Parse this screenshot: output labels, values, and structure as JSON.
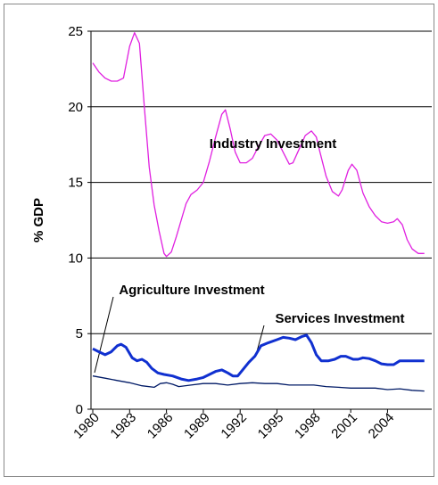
{
  "chart_data": {
    "type": "line",
    "ylabel": "% GDP",
    "xlim": [
      1980,
      2007.6
    ],
    "xticks": [
      1980,
      1983,
      1986,
      1989,
      1992,
      1995,
      1998,
      2001,
      2004
    ],
    "ylim": [
      0,
      25
    ],
    "yticks": [
      0,
      5,
      10,
      15,
      20,
      25
    ],
    "grid": true,
    "series": [
      {
        "name": "Industry Investment",
        "color": "#e020e0",
        "width": 1.3,
        "x": [
          1980,
          1980.5,
          1981,
          1981.5,
          1982,
          1982.5,
          1983,
          1983.4,
          1983.8,
          1984.2,
          1984.6,
          1985,
          1985.4,
          1985.8,
          1986,
          1986.4,
          1986.8,
          1987.2,
          1987.6,
          1988,
          1988.5,
          1989,
          1989.5,
          1990,
          1990.5,
          1990.8,
          1991.2,
          1991.6,
          1992,
          1992.5,
          1993,
          1993.5,
          1994,
          1994.5,
          1995,
          1995.5,
          1996,
          1996.3,
          1996.8,
          1997.3,
          1997.8,
          1998.2,
          1998.5,
          1999,
          1999.5,
          2000,
          2000.3,
          2000.8,
          2001.1,
          2001.5,
          2002,
          2002.5,
          2003,
          2003.5,
          2004,
          2004.5,
          2004.8,
          2005.2,
          2005.6,
          2006,
          2006.5,
          2007
        ],
        "values": [
          22.9,
          22.3,
          21.9,
          21.7,
          21.7,
          21.9,
          24.0,
          24.9,
          24.2,
          20,
          16,
          13.5,
          11.8,
          10.3,
          10.1,
          10.4,
          11.4,
          12.5,
          13.6,
          14.2,
          14.5,
          15,
          16.4,
          18,
          19.5,
          19.8,
          18.5,
          17,
          16.3,
          16.3,
          16.6,
          17.4,
          18.1,
          18.2,
          17.8,
          17,
          16.2,
          16.3,
          17.2,
          18.1,
          18.4,
          18,
          17,
          15.4,
          14.4,
          14.1,
          14.5,
          15.8,
          16.2,
          15.8,
          14.3,
          13.4,
          12.8,
          12.4,
          12.3,
          12.4,
          12.6,
          12.2,
          11.2,
          10.6,
          10.3,
          10.3
        ]
      },
      {
        "name": "Services Investment",
        "color": "#1030d0",
        "width": 3,
        "x": [
          1980,
          1980.5,
          1981,
          1981.5,
          1982,
          1982.3,
          1982.7,
          1983.2,
          1983.6,
          1984,
          1984.4,
          1984.8,
          1985.3,
          1985.8,
          1986.5,
          1987.2,
          1987.8,
          1988.5,
          1989,
          1989.5,
          1990,
          1990.5,
          1991,
          1991.4,
          1991.8,
          1992.2,
          1992.7,
          1993.2,
          1993.7,
          1994.3,
          1995,
          1995.5,
          1996,
          1996.5,
          1997,
          1997.4,
          1997.8,
          1998.2,
          1998.6,
          1999.2,
          1999.7,
          2000.2,
          2000.6,
          2001.2,
          2001.6,
          2002,
          2002.5,
          2003,
          2003.5,
          2004,
          2004.5,
          2005,
          2005.5,
          2006,
          2007
        ],
        "values": [
          4.0,
          3.8,
          3.6,
          3.8,
          4.2,
          4.3,
          4.1,
          3.4,
          3.2,
          3.3,
          3.1,
          2.7,
          2.4,
          2.3,
          2.2,
          2.0,
          1.9,
          2.0,
          2.1,
          2.3,
          2.5,
          2.6,
          2.4,
          2.2,
          2.2,
          2.6,
          3.1,
          3.5,
          4.2,
          4.4,
          4.6,
          4.75,
          4.7,
          4.6,
          4.8,
          4.9,
          4.4,
          3.6,
          3.2,
          3.2,
          3.3,
          3.5,
          3.5,
          3.3,
          3.3,
          3.4,
          3.35,
          3.2,
          3.0,
          2.95,
          2.95,
          3.2,
          3.2,
          3.2,
          3.2
        ]
      },
      {
        "name": "Agriculture Investment",
        "color": "#001a66",
        "width": 1.3,
        "x": [
          1980,
          1981,
          1982,
          1983,
          1984,
          1985,
          1985.5,
          1986,
          1986.5,
          1987,
          1988,
          1989,
          1990,
          1991,
          1992,
          1993,
          1994,
          1995,
          1996,
          1997,
          1998,
          1999,
          2000,
          2001,
          2002,
          2003,
          2004,
          2005,
          2006,
          2007
        ],
        "values": [
          2.2,
          2.05,
          1.9,
          1.75,
          1.55,
          1.45,
          1.7,
          1.75,
          1.65,
          1.5,
          1.6,
          1.7,
          1.7,
          1.6,
          1.7,
          1.75,
          1.7,
          1.7,
          1.6,
          1.6,
          1.6,
          1.5,
          1.45,
          1.4,
          1.4,
          1.4,
          1.3,
          1.35,
          1.25,
          1.2
        ]
      }
    ]
  }
}
